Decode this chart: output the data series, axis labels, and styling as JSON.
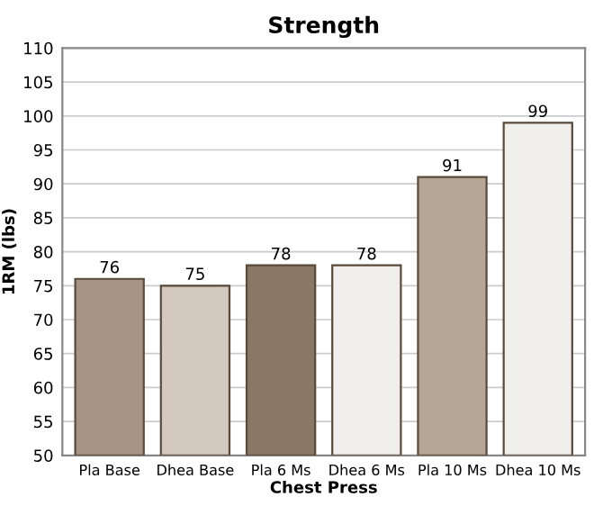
{
  "chart_data": {
    "type": "bar",
    "title": "Strength",
    "xlabel": "Chest Press",
    "ylabel": "1RM (lbs)",
    "categories": [
      "Pla Base",
      "Dhea Base",
      "Pla 6 Ms",
      "Dhea 6 Ms",
      "Pla 10 Ms",
      "Dhea 10 Ms"
    ],
    "values": [
      76,
      75,
      78,
      78,
      91,
      99
    ],
    "colors": [
      "#a69584",
      "#d3c9bf",
      "#8a7866",
      "#f1efeb",
      "#b6a696",
      "#f1efeb"
    ],
    "ylim": [
      50,
      110
    ],
    "yticks": [
      50,
      55,
      60,
      65,
      70,
      75,
      80,
      85,
      90,
      95,
      100,
      105,
      110
    ],
    "grid": "y",
    "data_labels": true
  }
}
